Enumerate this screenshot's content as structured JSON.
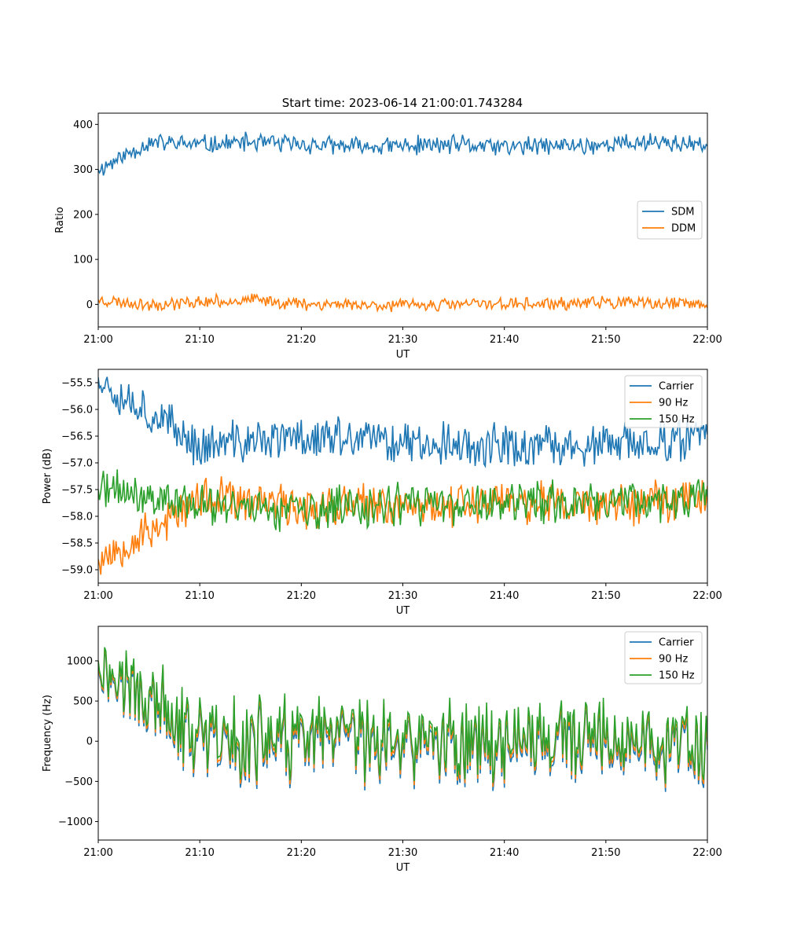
{
  "figure": {
    "title": "Start time: 2023-06-14 21:00:01.743284"
  },
  "colors": {
    "blue": "#1f77b4",
    "orange": "#ff7f0e",
    "green": "#2ca02c"
  },
  "chart_data": [
    {
      "type": "line",
      "title": "Start time: 2023-06-14 21:00:01.743284",
      "xlabel": "UT",
      "ylabel": "Ratio",
      "xlim": [
        "21:00",
        "22:00"
      ],
      "ylim": [
        -50,
        425
      ],
      "xticks": [
        "21:00",
        "21:10",
        "21:20",
        "21:30",
        "21:40",
        "21:50",
        "22:00"
      ],
      "yticks": [
        0,
        100,
        200,
        300,
        400
      ],
      "legend_position": "center-right",
      "series": [
        {
          "name": "SDM",
          "color": "#1f77b4",
          "base": 355,
          "amplitude": 18,
          "start": 300,
          "seed": 11,
          "x": [
            "21:00",
            "21:05",
            "21:10",
            "21:15",
            "21:20",
            "21:25",
            "21:30",
            "21:35",
            "21:40",
            "21:45",
            "21:50",
            "21:55",
            "22:00"
          ],
          "y": [
            300,
            360,
            355,
            360,
            355,
            350,
            352,
            355,
            350,
            352,
            355,
            362,
            350
          ]
        },
        {
          "name": "DDM",
          "color": "#ff7f0e",
          "base": 2,
          "amplitude": 12,
          "start": 10,
          "seed": 23,
          "x": [
            "21:00",
            "21:05",
            "21:10",
            "21:15",
            "21:20",
            "21:25",
            "21:30",
            "21:35",
            "21:40",
            "21:45",
            "21:50",
            "21:55",
            "22:00"
          ],
          "y": [
            10,
            0,
            5,
            10,
            2,
            0,
            -2,
            0,
            2,
            0,
            5,
            0,
            2
          ]
        }
      ]
    },
    {
      "type": "line",
      "xlabel": "UT",
      "ylabel": "Power (dB)",
      "xlim": [
        "21:00",
        "22:00"
      ],
      "ylim": [
        -59.25,
        -55.25
      ],
      "xticks": [
        "21:00",
        "21:10",
        "21:20",
        "21:30",
        "21:40",
        "21:50",
        "22:00"
      ],
      "yticks": [
        -55.5,
        -56.0,
        -56.5,
        -57.0,
        -57.5,
        -58.0,
        -58.5,
        -59.0
      ],
      "yticklabels": [
        "−55.5",
        "−56.0",
        "−56.5",
        "−57.0",
        "−57.5",
        "−58.0",
        "−58.5",
        "−59.0"
      ],
      "legend_position": "top-right",
      "series": [
        {
          "name": "Carrier",
          "color": "#1f77b4",
          "base": -56.7,
          "amplitude": 0.35,
          "start": -55.4,
          "seed": 37,
          "x": [
            "21:00",
            "21:10",
            "21:20",
            "21:30",
            "21:40",
            "21:50",
            "22:00"
          ],
          "y": [
            -55.4,
            -56.7,
            -56.5,
            -56.6,
            -56.7,
            -56.7,
            -56.5
          ]
        },
        {
          "name": "90 Hz",
          "color": "#ff7f0e",
          "base": -57.75,
          "amplitude": 0.35,
          "start": -58.8,
          "seed": 53,
          "x": [
            "21:00",
            "21:10",
            "21:20",
            "21:30",
            "21:40",
            "21:50",
            "22:00"
          ],
          "y": [
            -58.8,
            -57.7,
            -57.8,
            -57.8,
            -57.7,
            -57.8,
            -57.6
          ]
        },
        {
          "name": "150 Hz",
          "color": "#2ca02c",
          "base": -57.8,
          "amplitude": 0.35,
          "start": -57.5,
          "seed": 71,
          "x": [
            "21:00",
            "21:10",
            "21:20",
            "21:30",
            "21:40",
            "21:50",
            "22:00"
          ],
          "y": [
            -57.5,
            -57.8,
            -57.9,
            -57.8,
            -57.8,
            -57.7,
            -57.7
          ]
        }
      ]
    },
    {
      "type": "line",
      "xlabel": "UT",
      "ylabel": "Frequency (Hz)",
      "xlim": [
        "21:00",
        "22:00"
      ],
      "ylim": [
        -1230,
        1430
      ],
      "xticks": [
        "21:00",
        "21:10",
        "21:20",
        "21:30",
        "21:40",
        "21:50",
        "22:00"
      ],
      "yticks": [
        1000,
        500,
        0,
        -500,
        -1000
      ],
      "yticklabels": [
        "1000",
        "500",
        "0",
        "−500",
        "−1000"
      ],
      "legend_position": "top-right",
      "series": [
        {
          "name": "Carrier",
          "color": "#1f77b4",
          "base": -30,
          "amplitude": 430,
          "start": 1000,
          "seed": 97,
          "offset": -60,
          "x": [
            "21:00",
            "21:10",
            "21:20",
            "21:30",
            "21:40",
            "21:50",
            "22:00"
          ],
          "y": [
            1000,
            -20,
            0,
            -20,
            0,
            -20,
            -100
          ]
        },
        {
          "name": "90 Hz",
          "color": "#ff7f0e",
          "base": -30,
          "amplitude": 430,
          "start": 1000,
          "seed": 97,
          "offset": -30,
          "x": [
            "21:00",
            "21:10",
            "21:20",
            "21:30",
            "21:40",
            "21:50",
            "22:00"
          ],
          "y": [
            1000,
            0,
            20,
            0,
            20,
            0,
            -80
          ]
        },
        {
          "name": "150 Hz",
          "color": "#2ca02c",
          "base": -30,
          "amplitude": 430,
          "start": 1000,
          "seed": 97,
          "offset": 0,
          "x": [
            "21:00",
            "21:10",
            "21:20",
            "21:30",
            "21:40",
            "21:50",
            "22:00"
          ],
          "y": [
            1000,
            20,
            40,
            20,
            40,
            20,
            -60
          ]
        }
      ]
    }
  ]
}
